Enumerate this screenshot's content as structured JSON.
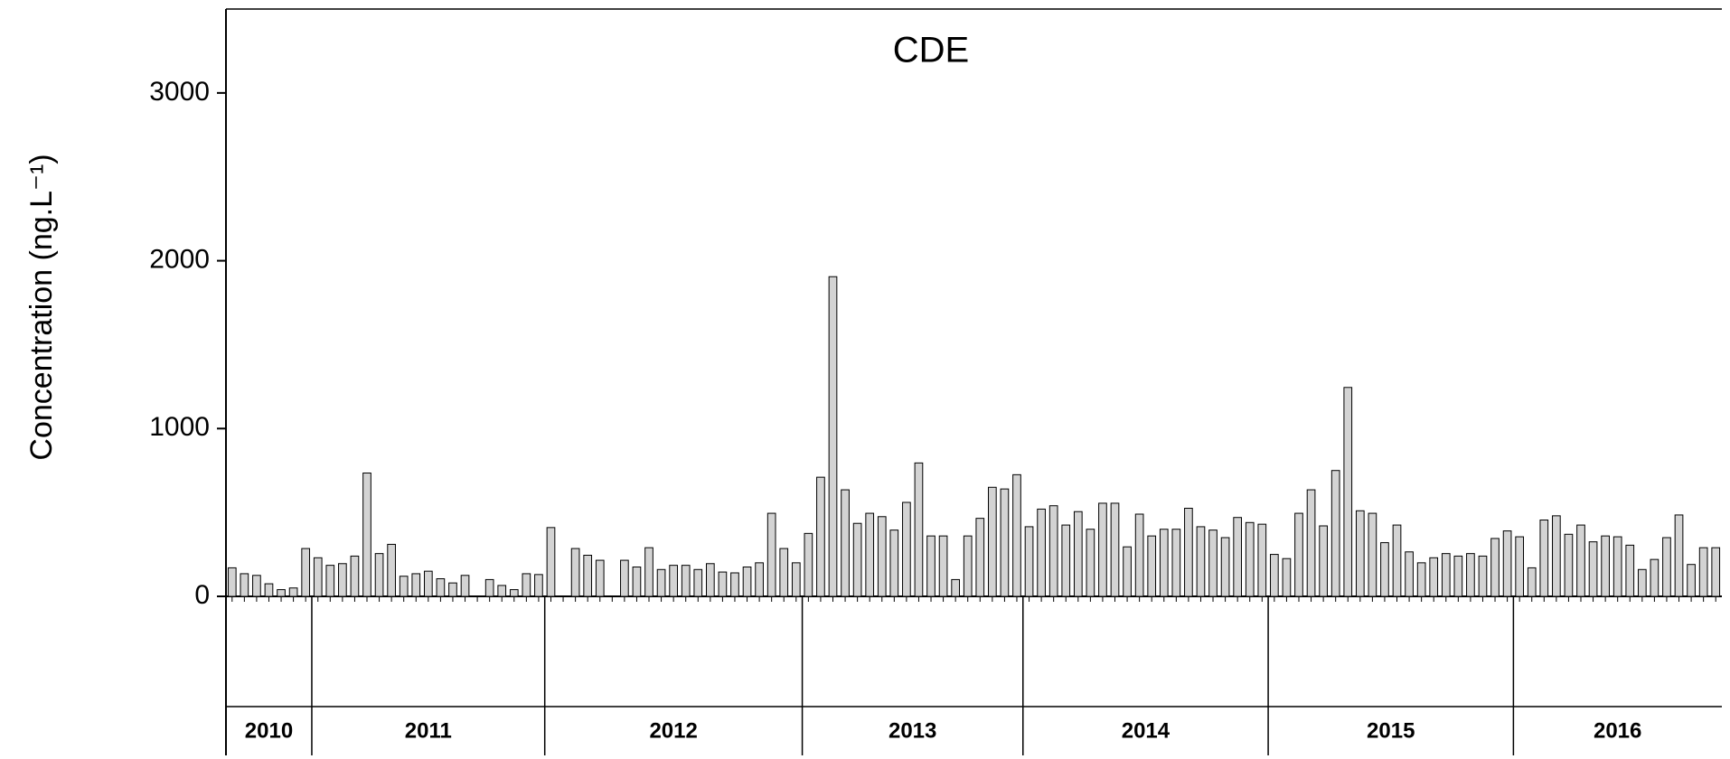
{
  "chart_data": {
    "type": "bar",
    "title": "CDE",
    "y_label": "Concentration (ng.L⁻¹)",
    "color": "#d3d3d3",
    "ylim": [
      0,
      3500
    ],
    "yticks": [
      0,
      1000,
      2000,
      3000
    ],
    "groups": [
      {
        "name": "2010",
        "values": [
          170,
          135,
          125,
          75,
          40,
          50,
          285
        ]
      },
      {
        "name": "2011",
        "values": [
          230,
          185,
          195,
          240,
          735,
          255,
          310,
          120,
          135,
          150,
          105,
          80,
          125,
          null,
          100,
          65,
          40,
          135,
          130
        ]
      },
      {
        "name": "2012",
        "values": [
          410,
          null,
          285,
          245,
          215,
          null,
          215,
          175,
          290,
          160,
          185,
          185,
          160,
          195,
          145,
          140,
          175,
          200,
          495,
          285,
          200
        ]
      },
      {
        "name": "2013",
        "values": [
          375,
          710,
          1905,
          635,
          435,
          495,
          475,
          395,
          560,
          795,
          360,
          360,
          100,
          360,
          465,
          650,
          640,
          725
        ]
      },
      {
        "name": "2014",
        "values": [
          415,
          520,
          540,
          425,
          505,
          400,
          555,
          555,
          295,
          490,
          360,
          400,
          400,
          525,
          415,
          395,
          350,
          470,
          440,
          430
        ]
      },
      {
        "name": "2015",
        "values": [
          250,
          225,
          495,
          635,
          420,
          750,
          1245,
          510,
          495,
          320,
          425,
          265,
          200,
          230,
          255,
          240,
          255,
          240,
          345,
          390
        ]
      },
      {
        "name": "2016",
        "values": [
          355,
          170,
          455,
          480,
          370,
          425,
          325,
          360,
          355,
          305,
          160,
          220,
          350,
          485,
          190,
          290,
          290
        ]
      }
    ]
  }
}
